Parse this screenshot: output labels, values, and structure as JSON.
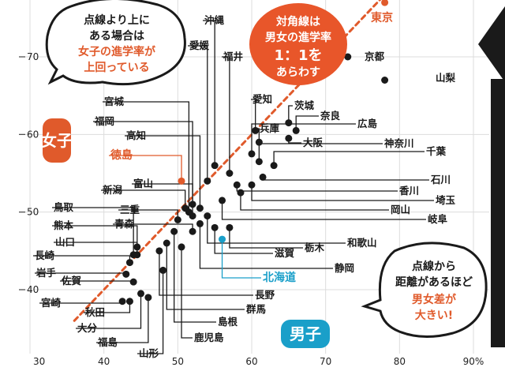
{
  "chart_data": {
    "type": "scatter",
    "title": "",
    "xlabel": "男子",
    "ylabel": "女子",
    "xlim": [
      30,
      90
    ],
    "ylim": [
      36.5,
      80
    ],
    "x_ticks": [
      "30",
      "40",
      "50",
      "60",
      "70",
      "80",
      "90%"
    ],
    "y_ticks": [
      "40",
      "50",
      "60",
      "70"
    ],
    "grid": true,
    "reference_line": "y = x",
    "points": [
      {
        "name": "東京",
        "x": 78,
        "y": 77,
        "highlight": "red"
      },
      {
        "name": "京都",
        "x": 73,
        "y": 70
      },
      {
        "name": "山梨",
        "x": 78,
        "y": 67
      },
      {
        "name": "沖縄",
        "x": 55,
        "y": 56
      },
      {
        "name": "愛媛",
        "x": 54,
        "y": 54
      },
      {
        "name": "福井",
        "x": 57,
        "y": 55
      },
      {
        "name": "愛知",
        "x": 60.5,
        "y": 60.5
      },
      {
        "name": "茨城",
        "x": 65,
        "y": 61.5
      },
      {
        "name": "奈良",
        "x": 66,
        "y": 60.5
      },
      {
        "name": "兵庫",
        "x": 61,
        "y": 59
      },
      {
        "name": "大阪",
        "x": 65,
        "y": 59.5
      },
      {
        "name": "広島",
        "x": 60,
        "y": 57.5
      },
      {
        "name": "神奈川",
        "x": 61,
        "y": 56.5
      },
      {
        "name": "千葉",
        "x": 63,
        "y": 56
      },
      {
        "name": "石川",
        "x": 61.5,
        "y": 54.5
      },
      {
        "name": "香川",
        "x": 58,
        "y": 53.5
      },
      {
        "name": "埼玉",
        "x": 60,
        "y": 53.5
      },
      {
        "name": "岡山",
        "x": 58.5,
        "y": 52.5
      },
      {
        "name": "岐阜",
        "x": 56,
        "y": 51.5
      },
      {
        "name": "和歌山",
        "x": 54,
        "y": 49.5
      },
      {
        "name": "栃木",
        "x": 57,
        "y": 48
      },
      {
        "name": "滋賀",
        "x": 55,
        "y": 48
      },
      {
        "name": "静岡",
        "x": 53,
        "y": 48.5
      },
      {
        "name": "北海道",
        "x": 56,
        "y": 46.5,
        "highlight": "blue"
      },
      {
        "name": "宮城",
        "x": 51.5,
        "y": 50
      },
      {
        "name": "福岡",
        "x": 52,
        "y": 51
      },
      {
        "name": "高知",
        "x": 53,
        "y": 50.5
      },
      {
        "name": "徳島",
        "x": 50.5,
        "y": 54,
        "highlight": "red"
      },
      {
        "name": "新潟",
        "x": 51,
        "y": 50.5
      },
      {
        "name": "富山",
        "x": 52,
        "y": 49.5
      },
      {
        "name": "三重",
        "x": 50,
        "y": 49
      },
      {
        "name": "青森",
        "x": 52,
        "y": 47.5
      },
      {
        "name": "鳥取",
        "x": 44,
        "y": 44.5
      },
      {
        "name": "熊本",
        "x": 44.5,
        "y": 45.5
      },
      {
        "name": "山口",
        "x": 44.5,
        "y": 44.5
      },
      {
        "name": "長崎",
        "x": 43.5,
        "y": 43.5
      },
      {
        "name": "岩手",
        "x": 43,
        "y": 42
      },
      {
        "name": "佐賀",
        "x": 44,
        "y": 41
      },
      {
        "name": "宮崎",
        "x": 42.5,
        "y": 38.5
      },
      {
        "name": "秋田",
        "x": 43.5,
        "y": 38.5
      },
      {
        "name": "大分",
        "x": 45,
        "y": 39.5
      },
      {
        "name": "福島",
        "x": 46,
        "y": 39
      },
      {
        "name": "山形",
        "x": 48,
        "y": 42.5
      },
      {
        "name": "長野",
        "x": 47.5,
        "y": 45
      },
      {
        "name": "群馬",
        "x": 48.5,
        "y": 46
      },
      {
        "name": "島根",
        "x": 49.5,
        "y": 47.5
      },
      {
        "name": "鹿児島",
        "x": 50.5,
        "y": 45.5
      }
    ]
  },
  "annotations": {
    "top_left_bubble": [
      "点線より上に",
      "ある場合は",
      "女子の進学率が",
      "上回っている"
    ],
    "diagonal_bubble": [
      "対角線は",
      "男女の進学率",
      "1：1を",
      "あらわす"
    ],
    "bottom_right_bubble": [
      "点線から",
      "距離があるほど",
      "男女差が",
      "大きい!"
    ]
  },
  "colors": {
    "accent_red": "#e05a2b",
    "accent_blue": "#1a9fc9",
    "dot": "#1a1a1a",
    "grid": "#dcdcdc"
  }
}
